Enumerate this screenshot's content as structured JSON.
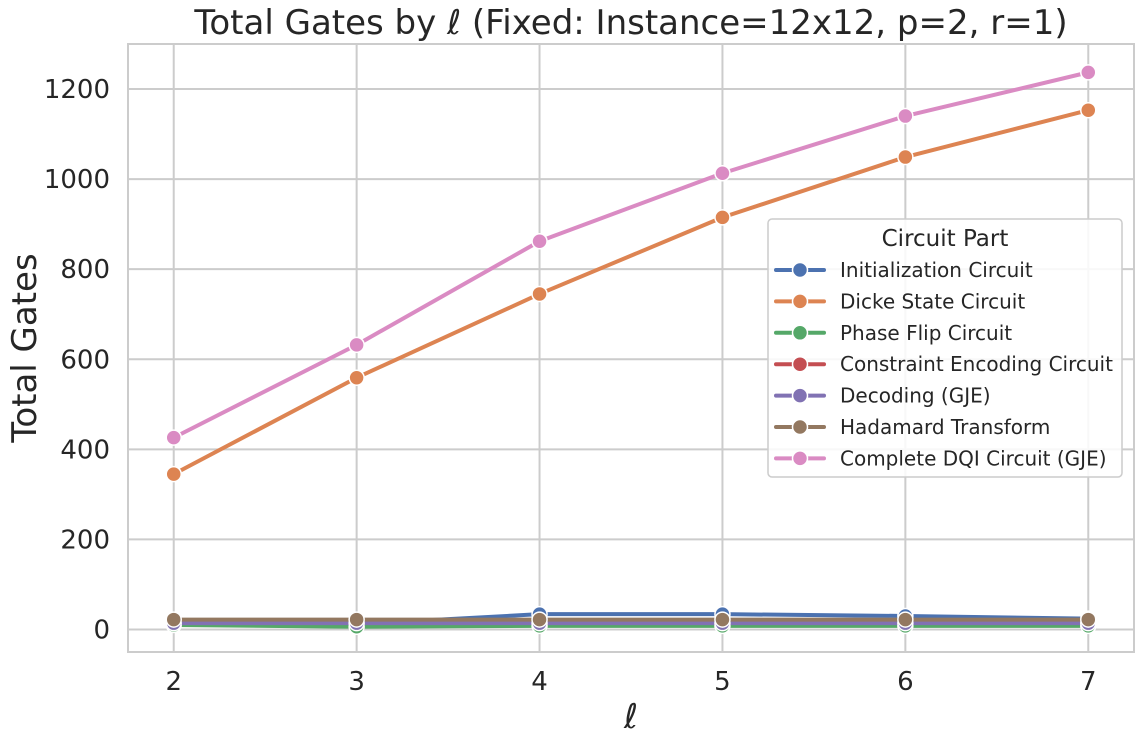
{
  "chart_data": {
    "type": "line",
    "title": "Total Gates by ℓ (Fixed: Instance=12x12, p=2, r=1)",
    "xlabel": "ℓ",
    "ylabel": "Total Gates",
    "x": [
      2,
      3,
      4,
      5,
      6,
      7
    ],
    "xlim": [
      1.75,
      7.25
    ],
    "ylim": [
      -50,
      1300
    ],
    "yticks": [
      0,
      200,
      400,
      600,
      800,
      1000,
      1200
    ],
    "xticks": [
      2,
      3,
      4,
      5,
      6,
      7
    ],
    "grid": true,
    "legend": {
      "title": "Circuit Part",
      "placement": "center-right"
    },
    "series": [
      {
        "name": "Initialization Circuit",
        "color": "#4c72b0",
        "values": [
          12,
          12,
          34,
          34,
          30,
          24
        ]
      },
      {
        "name": "Dicke State Circuit",
        "color": "#dd8452",
        "values": [
          345,
          559,
          745,
          915,
          1049,
          1153
        ]
      },
      {
        "name": "Phase Flip Circuit",
        "color": "#55a868",
        "values": [
          10,
          6,
          8,
          8,
          8,
          8
        ]
      },
      {
        "name": "Constraint Encoding Circuit",
        "color": "#c44e52",
        "values": [
          17,
          17,
          17,
          17,
          17,
          17
        ]
      },
      {
        "name": "Decoding (GJE)",
        "color": "#8172b3",
        "values": [
          14,
          14,
          14,
          14,
          14,
          14
        ]
      },
      {
        "name": "Hadamard Transform",
        "color": "#937860",
        "values": [
          22,
          22,
          22,
          22,
          22,
          22
        ]
      },
      {
        "name": "Complete DQI Circuit (GJE)",
        "color": "#da8bc3",
        "values": [
          426,
          632,
          862,
          1013,
          1140,
          1237
        ]
      }
    ]
  }
}
